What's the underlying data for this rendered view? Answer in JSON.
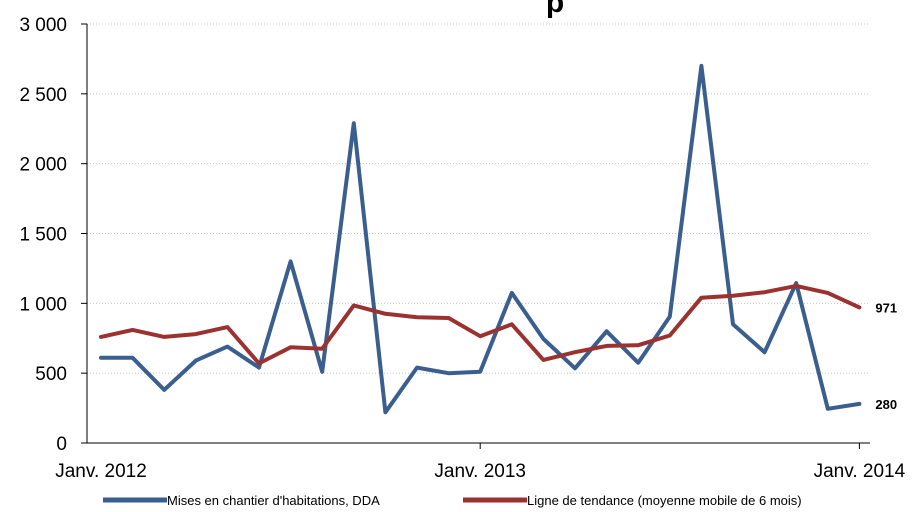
{
  "chart_data": {
    "type": "line",
    "title": "p",
    "x": [
      "2012-01",
      "2012-02",
      "2012-03",
      "2012-04",
      "2012-05",
      "2012-06",
      "2012-07",
      "2012-08",
      "2012-09",
      "2012-10",
      "2012-11",
      "2012-12",
      "2013-01",
      "2013-02",
      "2013-03",
      "2013-04",
      "2013-05",
      "2013-06",
      "2013-07",
      "2013-08",
      "2013-09",
      "2013-10",
      "2013-11",
      "2013-12",
      "2014-01"
    ],
    "x_tick_labels": [
      "Janv. 2012",
      "Janv. 2013",
      "Janv. 2014"
    ],
    "y_tick_labels": [
      "0",
      "500",
      "1 000",
      "1 500",
      "2 000",
      "2 500",
      "3 000"
    ],
    "ylim": [
      0,
      3000
    ],
    "grid": "horizontal",
    "legend_position": "bottom",
    "series": [
      {
        "name": "Mises en chantier d'habitations, DDA",
        "color": "#3A5F8F",
        "values": [
          610,
          610,
          380,
          590,
          690,
          540,
          1300,
          510,
          2290,
          220,
          540,
          500,
          510,
          1075,
          745,
          535,
          800,
          575,
          905,
          2700,
          850,
          650,
          1145,
          245,
          280
        ],
        "end_label": "280"
      },
      {
        "name": "Ligne de tendance (moyenne mobile de 6 mois)",
        "color": "#9B3230",
        "values": [
          760,
          810,
          760,
          780,
          830,
          570,
          685,
          675,
          985,
          925,
          900,
          895,
          765,
          850,
          595,
          650,
          695,
          700,
          770,
          1040,
          1055,
          1080,
          1125,
          1075,
          971
        ],
        "end_label": "971"
      }
    ]
  }
}
